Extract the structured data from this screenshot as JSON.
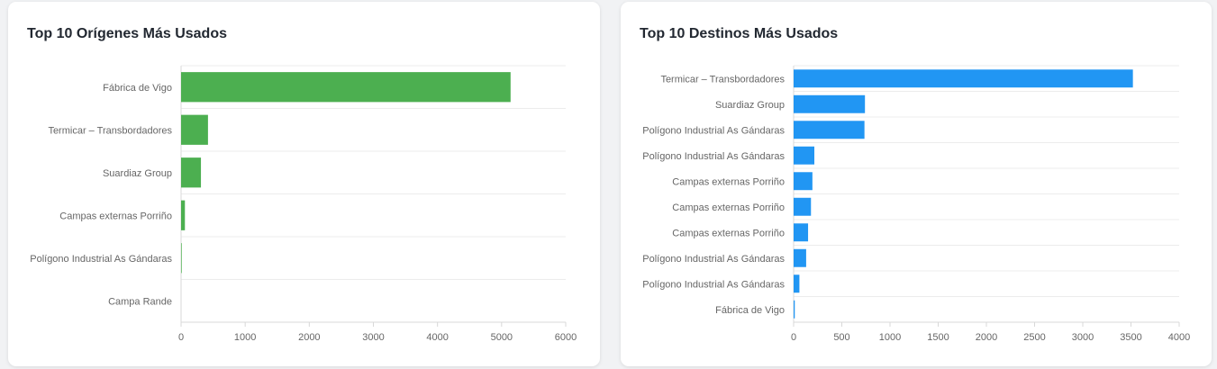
{
  "charts": {
    "origins": {
      "title": "Top 10 Orígenes Más Usados"
    },
    "destinations": {
      "title": "Top 10 Destinos Más Usados"
    }
  },
  "chart_data": [
    {
      "type": "bar",
      "orientation": "horizontal",
      "title": "Top 10 Orígenes Más Usados",
      "categories": [
        "Fábrica de Vigo",
        "Termicar – Transbordadores",
        "Suardiaz Group",
        "Campas externas Porriño",
        "Polígono Industrial As Gándaras",
        "Campa Rande"
      ],
      "values": [
        5140,
        420,
        310,
        60,
        10,
        0
      ],
      "xlim": [
        0,
        6000
      ],
      "xticks": [
        0,
        1000,
        2000,
        3000,
        4000,
        5000,
        6000
      ],
      "grid": "horizontal",
      "color": "#4caf50"
    },
    {
      "type": "bar",
      "orientation": "horizontal",
      "title": "Top 10 Destinos Más Usados",
      "categories": [
        "Termicar – Transbordadores",
        "Suardiaz Group",
        "Polígono Industrial As Gándaras",
        "Polígono Industrial As Gándaras",
        "Campas externas Porriño",
        "Campas externas Porriño",
        "Campas externas Porriño",
        "Polígono Industrial As Gándaras",
        "Polígono Industrial As Gándaras",
        "Fábrica de Vigo"
      ],
      "values": [
        3520,
        740,
        735,
        215,
        195,
        180,
        150,
        130,
        60,
        12
      ],
      "xlim": [
        0,
        4000
      ],
      "xticks": [
        0,
        500,
        1000,
        1500,
        2000,
        2500,
        3000,
        3500,
        4000
      ],
      "grid": "horizontal",
      "color": "#2196f3"
    }
  ]
}
